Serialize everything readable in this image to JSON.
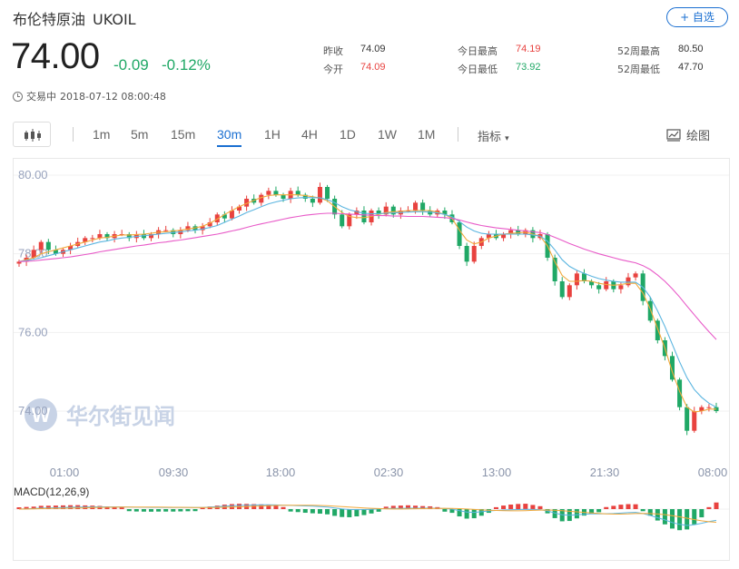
{
  "header": {
    "name": "布伦特原油",
    "code": "UKOIL",
    "watch_label": "+ 自选"
  },
  "quote": {
    "price": "74.00",
    "change": "-0.09",
    "change_pct": "-0.12%"
  },
  "stats": [
    {
      "label": "昨收",
      "value": "74.09"
    },
    {
      "label": "今开",
      "value": "74.09"
    },
    {
      "label": "今日最高",
      "value": "74.19"
    },
    {
      "label": "今日最低",
      "value": "73.92"
    },
    {
      "label": "52周最高",
      "value": "80.50"
    },
    {
      "label": "52周最低",
      "value": "47.70"
    }
  ],
  "status": {
    "label": "交易中",
    "time": "2018-07-12 08:00:48"
  },
  "toolbar": {
    "periods": [
      "1m",
      "5m",
      "15m",
      "30m",
      "1H",
      "4H",
      "1D",
      "1W",
      "1M"
    ],
    "active_period": "30m",
    "indicator_label": "指标",
    "draw_label": "绘图"
  },
  "watermark": "华尔街见闻",
  "colors": {
    "up": "#e8423f",
    "down": "#20a866",
    "accent": "#1a6fd1",
    "ma_short": "#f2a93b",
    "ma_mid": "#5bb5e0",
    "ma_long": "#e85ac8"
  },
  "chart_data": {
    "type": "candlestick",
    "y_ticks": [
      "80.00",
      "78.00",
      "76.00",
      "74.00"
    ],
    "x_ticks": [
      "01:00",
      "09:30",
      "18:00",
      "02:30",
      "13:00",
      "21:30",
      "08:00"
    ],
    "ylim": [
      72.8,
      80.3
    ],
    "bar_count": 96,
    "close": [
      77.8,
      77.9,
      78.1,
      78.3,
      78.1,
      78.0,
      78.1,
      78.2,
      78.3,
      78.4,
      78.4,
      78.5,
      78.4,
      78.5,
      78.5,
      78.4,
      78.5,
      78.4,
      78.5,
      78.6,
      78.6,
      78.5,
      78.6,
      78.7,
      78.6,
      78.7,
      78.8,
      79.0,
      78.9,
      79.1,
      79.2,
      79.4,
      79.3,
      79.5,
      79.6,
      79.5,
      79.4,
      79.6,
      79.5,
      79.4,
      79.3,
      79.7,
      79.4,
      79.0,
      78.7,
      79.0,
      79.1,
      78.8,
      79.1,
      79.0,
      79.2,
      79.0,
      79.1,
      79.1,
      79.3,
      79.1,
      79.0,
      79.1,
      79.0,
      78.8,
      78.2,
      77.8,
      78.2,
      78.4,
      78.5,
      78.4,
      78.5,
      78.6,
      78.5,
      78.6,
      78.4,
      78.5,
      77.9,
      77.3,
      76.9,
      77.2,
      77.5,
      77.3,
      77.2,
      77.1,
      77.3,
      77.1,
      77.2,
      77.4,
      77.5,
      76.8,
      76.3,
      75.8,
      75.4,
      74.8,
      74.1,
      73.5,
      74.0,
      74.1,
      74.1,
      74.0
    ],
    "ma_short": [
      77.8,
      77.85,
      77.9,
      78.0,
      78.05,
      78.1,
      78.15,
      78.2,
      78.25,
      78.3,
      78.35,
      78.4,
      78.42,
      78.45,
      78.48,
      78.48,
      78.49,
      78.5,
      78.52,
      78.55,
      78.56,
      78.58,
      78.6,
      78.63,
      78.66,
      78.7,
      78.78,
      78.88,
      79.0,
      79.1,
      79.2,
      79.28,
      79.36,
      79.43,
      79.48,
      79.5,
      79.5,
      79.5,
      79.5,
      79.48,
      79.45,
      79.42,
      79.35,
      79.2,
      79.05,
      78.95,
      78.92,
      78.92,
      78.95,
      79.0,
      79.05,
      79.07,
      79.08,
      79.1,
      79.1,
      79.1,
      79.1,
      79.06,
      79.0,
      78.9,
      78.6,
      78.35,
      78.25,
      78.3,
      78.4,
      78.45,
      78.5,
      78.52,
      78.53,
      78.55,
      78.5,
      78.45,
      78.2,
      77.8,
      77.45,
      77.3,
      77.3,
      77.32,
      77.3,
      77.25,
      77.22,
      77.2,
      77.22,
      77.25,
      77.25,
      77.0,
      76.6,
      76.1,
      75.6,
      75.0,
      74.5,
      74.1,
      73.98,
      74.0,
      74.05,
      74.05
    ],
    "ma_mid": [
      77.8,
      77.83,
      77.86,
      77.9,
      77.95,
      78.0,
      78.05,
      78.1,
      78.15,
      78.2,
      78.25,
      78.3,
      78.33,
      78.37,
      78.4,
      78.42,
      78.44,
      78.46,
      78.48,
      78.5,
      78.52,
      78.54,
      78.56,
      78.58,
      78.6,
      78.63,
      78.67,
      78.72,
      78.8,
      78.88,
      78.96,
      79.05,
      79.12,
      79.2,
      79.27,
      79.32,
      79.36,
      79.4,
      79.42,
      79.43,
      79.43,
      79.42,
      79.38,
      79.3,
      79.2,
      79.12,
      79.07,
      79.03,
      79.02,
      79.02,
      79.03,
      79.04,
      79.05,
      79.06,
      79.07,
      79.07,
      79.06,
      79.04,
      79.0,
      78.94,
      78.82,
      78.68,
      78.58,
      78.52,
      78.5,
      78.5,
      78.5,
      78.5,
      78.5,
      78.5,
      78.48,
      78.45,
      78.32,
      78.1,
      77.85,
      77.68,
      77.58,
      77.5,
      77.43,
      77.37,
      77.33,
      77.3,
      77.28,
      77.28,
      77.28,
      77.15,
      76.9,
      76.55,
      76.15,
      75.7,
      75.25,
      74.85,
      74.55,
      74.35,
      74.2,
      74.1
    ],
    "ma_long": [
      77.8,
      77.81,
      77.82,
      77.84,
      77.86,
      77.88,
      77.9,
      77.92,
      77.95,
      77.98,
      78.01,
      78.05,
      78.08,
      78.11,
      78.14,
      78.17,
      78.2,
      78.22,
      78.25,
      78.28,
      78.3,
      78.33,
      78.35,
      78.38,
      78.41,
      78.44,
      78.47,
      78.5,
      78.54,
      78.58,
      78.62,
      78.67,
      78.72,
      78.76,
      78.8,
      78.84,
      78.88,
      78.92,
      78.95,
      78.98,
      79.0,
      79.02,
      79.03,
      79.03,
      79.02,
      79.01,
      79.0,
      78.99,
      78.98,
      78.97,
      78.97,
      78.96,
      78.96,
      78.95,
      78.95,
      78.95,
      78.94,
      78.93,
      78.92,
      78.9,
      78.86,
      78.81,
      78.76,
      78.72,
      78.69,
      78.66,
      78.64,
      78.62,
      78.6,
      78.58,
      78.56,
      78.54,
      78.49,
      78.42,
      78.34,
      78.26,
      78.19,
      78.12,
      78.06,
      78.0,
      77.95,
      77.9,
      77.85,
      77.81,
      77.77,
      77.7,
      77.6,
      77.46,
      77.3,
      77.11,
      76.9,
      76.67,
      76.45,
      76.23,
      76.02,
      75.82
    ],
    "macd": {
      "label": "MACD(12,26,9)"
    }
  }
}
